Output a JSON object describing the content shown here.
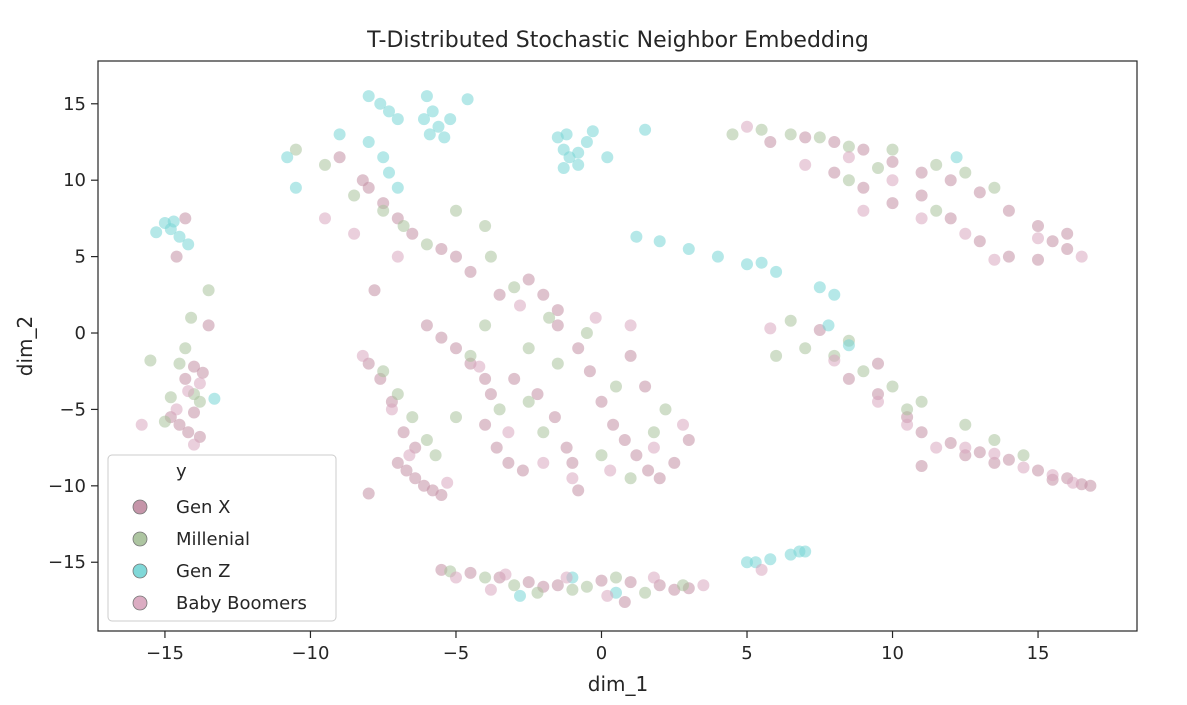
{
  "chart_data": {
    "type": "scatter",
    "title": "T-Distributed Stochastic Neighbor Embedding",
    "xlabel": "dim_1",
    "ylabel": "dim_2",
    "xlim": [
      -17.3,
      18.4
    ],
    "ylim": [
      -19.5,
      17.8
    ],
    "xticks": [
      -15,
      -10,
      -5,
      0,
      5,
      10,
      15
    ],
    "yticks": [
      -15,
      -10,
      -5,
      0,
      5,
      10,
      15
    ],
    "grid": false,
    "legend": {
      "title": "y",
      "placement": "lower-left"
    },
    "series": [
      {
        "name": "Gen X",
        "color": "#c28fa4",
        "points": [
          [
            -14.8,
            -5.5
          ],
          [
            -14.5,
            -6.0
          ],
          [
            -14.2,
            -6.5
          ],
          [
            -14.0,
            -5.2
          ],
          [
            -13.8,
            -6.8
          ],
          [
            -14.3,
            -3.0
          ],
          [
            -14.0,
            -2.2
          ],
          [
            -13.7,
            -2.6
          ],
          [
            -14.6,
            5.0
          ],
          [
            -14.3,
            7.5
          ],
          [
            -13.5,
            0.5
          ],
          [
            -7.0,
            -8.5
          ],
          [
            -6.7,
            -9.0
          ],
          [
            -6.4,
            -9.5
          ],
          [
            -6.1,
            -10.0
          ],
          [
            -5.8,
            -10.3
          ],
          [
            -5.5,
            -10.6
          ],
          [
            -8.0,
            -2.0
          ],
          [
            -7.6,
            -3.0
          ],
          [
            -7.2,
            -4.5
          ],
          [
            -6.8,
            -6.5
          ],
          [
            -6.4,
            -7.5
          ],
          [
            -8.0,
            -10.5
          ],
          [
            -4.0,
            -6.0
          ],
          [
            -3.6,
            -7.5
          ],
          [
            -3.2,
            -8.5
          ],
          [
            -2.7,
            -9.0
          ],
          [
            -3.0,
            -3.0
          ],
          [
            -2.2,
            -4.0
          ],
          [
            -1.6,
            -5.5
          ],
          [
            -1.2,
            -7.5
          ],
          [
            -1.0,
            -8.5
          ],
          [
            -0.8,
            -10.3
          ],
          [
            -1.5,
            0.5
          ],
          [
            -0.8,
            -1.0
          ],
          [
            -0.4,
            -2.5
          ],
          [
            0.0,
            -4.5
          ],
          [
            0.4,
            -6.0
          ],
          [
            0.8,
            -7.0
          ],
          [
            1.2,
            -8.0
          ],
          [
            1.6,
            -9.0
          ],
          [
            2.0,
            -9.5
          ],
          [
            2.5,
            -8.5
          ],
          [
            3.0,
            -7.0
          ],
          [
            1.5,
            -3.5
          ],
          [
            1.0,
            -1.5
          ],
          [
            -6.0,
            0.5
          ],
          [
            -5.5,
            -0.3
          ],
          [
            -5.0,
            -1.0
          ],
          [
            -4.5,
            -2.0
          ],
          [
            -4.0,
            -3.0
          ],
          [
            -3.8,
            -4.0
          ],
          [
            -3.5,
            2.5
          ],
          [
            -2.5,
            3.5
          ],
          [
            -2.0,
            2.5
          ],
          [
            -1.5,
            1.5
          ],
          [
            -8.0,
            9.5
          ],
          [
            -7.5,
            8.5
          ],
          [
            -7.0,
            7.5
          ],
          [
            -6.5,
            6.5
          ],
          [
            -5.5,
            5.5
          ],
          [
            -4.5,
            4.0
          ],
          [
            -5.0,
            5.0
          ],
          [
            -7.8,
            2.8
          ],
          [
            -9.0,
            11.5
          ],
          [
            -8.2,
            10.0
          ],
          [
            11.0,
            -6.5
          ],
          [
            12.0,
            -7.2
          ],
          [
            13.0,
            -7.8
          ],
          [
            14.0,
            -8.3
          ],
          [
            15.0,
            -9.0
          ],
          [
            16.0,
            -9.5
          ],
          [
            16.5,
            -9.9
          ],
          [
            10.5,
            -5.5
          ],
          [
            9.5,
            -4.0
          ],
          [
            8.5,
            -3.0
          ],
          [
            13.5,
            -8.5
          ],
          [
            11.0,
            -8.7
          ],
          [
            12.5,
            -8.0
          ],
          [
            15.5,
            -9.6
          ],
          [
            16.8,
            -10.0
          ],
          [
            7.5,
            0.2
          ],
          [
            9.5,
            -2.0
          ],
          [
            5.8,
            12.5
          ],
          [
            7.0,
            12.8
          ],
          [
            8.0,
            12.5
          ],
          [
            9.0,
            12.0
          ],
          [
            10.0,
            11.2
          ],
          [
            11.0,
            10.5
          ],
          [
            12.0,
            10.0
          ],
          [
            13.0,
            9.2
          ],
          [
            14.0,
            8.0
          ],
          [
            15.0,
            7.0
          ],
          [
            16.0,
            6.5
          ],
          [
            8.0,
            10.5
          ],
          [
            9.0,
            9.5
          ],
          [
            10.0,
            8.5
          ],
          [
            12.0,
            7.5
          ],
          [
            13.0,
            6.0
          ],
          [
            14.0,
            5.0
          ],
          [
            15.0,
            4.8
          ],
          [
            16.0,
            5.5
          ],
          [
            11.0,
            9.0
          ],
          [
            15.5,
            6.0
          ],
          [
            -5.5,
            -15.5
          ],
          [
            -4.5,
            -15.7
          ],
          [
            -3.5,
            -16.0
          ],
          [
            -2.5,
            -16.3
          ],
          [
            -1.5,
            -16.5
          ],
          [
            0.0,
            -16.2
          ],
          [
            1.0,
            -16.3
          ],
          [
            2.0,
            -16.5
          ],
          [
            3.0,
            -16.7
          ],
          [
            -2.0,
            -16.6
          ],
          [
            0.8,
            -17.6
          ],
          [
            2.5,
            -16.8
          ]
        ]
      },
      {
        "name": "Millenial",
        "color": "#a9c29c",
        "points": [
          [
            -15.5,
            -1.8
          ],
          [
            -14.5,
            -2.0
          ],
          [
            -14.0,
            -4.0
          ],
          [
            -14.3,
            -1.0
          ],
          [
            -13.8,
            -4.5
          ],
          [
            -15.0,
            -5.8
          ],
          [
            -14.8,
            -4.2
          ],
          [
            -13.5,
            2.8
          ],
          [
            -14.1,
            1.0
          ],
          [
            -7.5,
            -2.5
          ],
          [
            -7.0,
            -4.0
          ],
          [
            -6.5,
            -5.5
          ],
          [
            -6.0,
            -7.0
          ],
          [
            -5.7,
            -8.0
          ],
          [
            -4.5,
            -1.5
          ],
          [
            -3.5,
            -5.0
          ],
          [
            -2.0,
            -6.5
          ],
          [
            -1.5,
            -2.0
          ],
          [
            -0.5,
            0.0
          ],
          [
            0.5,
            -3.5
          ],
          [
            1.8,
            -6.5
          ],
          [
            2.2,
            -5.0
          ],
          [
            -2.5,
            -1.0
          ],
          [
            -3.0,
            3.0
          ],
          [
            -1.8,
            1.0
          ],
          [
            -4.0,
            0.5
          ],
          [
            -2.5,
            -4.5
          ],
          [
            -5.0,
            -5.5
          ],
          [
            0.0,
            -8.0
          ],
          [
            1.0,
            -9.5
          ],
          [
            -10.5,
            12.0
          ],
          [
            -9.5,
            11.0
          ],
          [
            -8.5,
            9.0
          ],
          [
            -7.5,
            8.0
          ],
          [
            -6.8,
            7.0
          ],
          [
            -6.0,
            5.8
          ],
          [
            -5.0,
            8.0
          ],
          [
            -4.0,
            7.0
          ],
          [
            -3.8,
            5.0
          ],
          [
            6.0,
            -1.5
          ],
          [
            7.0,
            -1.0
          ],
          [
            8.0,
            -1.5
          ],
          [
            9.0,
            -2.5
          ],
          [
            10.0,
            -3.5
          ],
          [
            11.0,
            -4.5
          ],
          [
            12.5,
            -6.0
          ],
          [
            13.5,
            -7.0
          ],
          [
            14.5,
            -8.0
          ],
          [
            8.5,
            -0.5
          ],
          [
            6.5,
            0.8
          ],
          [
            10.5,
            -5.0
          ],
          [
            4.5,
            13.0
          ],
          [
            5.5,
            13.3
          ],
          [
            6.5,
            13.0
          ],
          [
            7.5,
            12.8
          ],
          [
            8.5,
            12.2
          ],
          [
            10.0,
            12.0
          ],
          [
            11.5,
            11.0
          ],
          [
            12.5,
            10.5
          ],
          [
            13.5,
            9.5
          ],
          [
            8.5,
            10.0
          ],
          [
            9.5,
            10.8
          ],
          [
            11.5,
            8.0
          ],
          [
            -4.0,
            -16.0
          ],
          [
            -3.0,
            -16.5
          ],
          [
            -2.2,
            -17.0
          ],
          [
            -1.0,
            -16.8
          ],
          [
            0.5,
            -16.0
          ],
          [
            1.5,
            -17.0
          ],
          [
            2.8,
            -16.5
          ],
          [
            -5.2,
            -15.6
          ],
          [
            -0.5,
            -16.6
          ]
        ]
      },
      {
        "name": "Gen Z",
        "color": "#79d6d6",
        "points": [
          [
            -15.0,
            7.2
          ],
          [
            -14.8,
            6.8
          ],
          [
            -14.5,
            6.3
          ],
          [
            -14.2,
            5.8
          ],
          [
            -15.3,
            6.6
          ],
          [
            -14.7,
            7.3
          ],
          [
            -13.3,
            -4.3
          ],
          [
            -10.8,
            11.5
          ],
          [
            -10.5,
            9.5
          ],
          [
            -9.0,
            13.0
          ],
          [
            -8.0,
            12.5
          ],
          [
            -7.5,
            11.5
          ],
          [
            -7.3,
            10.5
          ],
          [
            -7.0,
            9.5
          ],
          [
            -8.0,
            15.5
          ],
          [
            -7.6,
            15.0
          ],
          [
            -7.3,
            14.5
          ],
          [
            -7.0,
            14.0
          ],
          [
            -6.0,
            15.5
          ],
          [
            -5.8,
            14.5
          ],
          [
            -5.6,
            13.5
          ],
          [
            -5.4,
            12.8
          ],
          [
            -6.1,
            14.0
          ],
          [
            -5.9,
            13.0
          ],
          [
            -5.2,
            14.0
          ],
          [
            -4.6,
            15.3
          ],
          [
            -1.5,
            12.8
          ],
          [
            -1.3,
            12.0
          ],
          [
            -1.1,
            11.5
          ],
          [
            -0.8,
            11.0
          ],
          [
            -0.5,
            12.5
          ],
          [
            -1.2,
            13.0
          ],
          [
            -0.3,
            13.2
          ],
          [
            -0.8,
            11.8
          ],
          [
            0.2,
            11.5
          ],
          [
            -1.3,
            10.8
          ],
          [
            1.5,
            13.3
          ],
          [
            1.2,
            6.3
          ],
          [
            2.0,
            6.0
          ],
          [
            3.0,
            5.5
          ],
          [
            4.0,
            5.0
          ],
          [
            5.0,
            4.5
          ],
          [
            6.0,
            4.0
          ],
          [
            7.5,
            3.0
          ],
          [
            8.0,
            2.5
          ],
          [
            7.8,
            0.5
          ],
          [
            8.5,
            -0.8
          ],
          [
            5.5,
            4.6
          ],
          [
            12.2,
            11.5
          ],
          [
            5.0,
            -15.0
          ],
          [
            5.8,
            -14.8
          ],
          [
            6.5,
            -14.5
          ],
          [
            7.0,
            -14.3
          ],
          [
            5.3,
            -15.0
          ],
          [
            6.8,
            -14.3
          ],
          [
            -1.0,
            -16.0
          ],
          [
            0.5,
            -17.0
          ],
          [
            -2.8,
            -17.2
          ]
        ]
      },
      {
        "name": "Baby Boomers",
        "color": "#d9a8bf",
        "points": [
          [
            -14.2,
            -3.8
          ],
          [
            -13.8,
            -3.3
          ],
          [
            -14.0,
            -7.3
          ],
          [
            -14.6,
            -5.0
          ],
          [
            -15.8,
            -6.0
          ],
          [
            -8.2,
            -1.5
          ],
          [
            -7.2,
            -5.0
          ],
          [
            -6.6,
            -8.0
          ],
          [
            -5.3,
            -9.8
          ],
          [
            -3.2,
            -6.5
          ],
          [
            -2.0,
            -8.5
          ],
          [
            -1.0,
            -9.5
          ],
          [
            0.3,
            -9.0
          ],
          [
            1.8,
            -7.5
          ],
          [
            2.8,
            -6.0
          ],
          [
            1.0,
            0.5
          ],
          [
            -0.2,
            1.0
          ],
          [
            -9.5,
            7.5
          ],
          [
            -8.5,
            6.5
          ],
          [
            -7.0,
            5.0
          ],
          [
            -4.2,
            -2.2
          ],
          [
            -2.8,
            1.8
          ],
          [
            9.5,
            -4.5
          ],
          [
            10.5,
            -6.0
          ],
          [
            11.5,
            -7.5
          ],
          [
            12.5,
            -7.5
          ],
          [
            13.5,
            -7.9
          ],
          [
            14.5,
            -8.8
          ],
          [
            15.5,
            -9.3
          ],
          [
            16.2,
            -9.8
          ],
          [
            5.8,
            0.3
          ],
          [
            8.0,
            -1.8
          ],
          [
            7.0,
            11.0
          ],
          [
            8.5,
            11.5
          ],
          [
            10.0,
            10.0
          ],
          [
            11.0,
            7.5
          ],
          [
            12.5,
            6.5
          ],
          [
            13.5,
            4.8
          ],
          [
            15.0,
            6.2
          ],
          [
            16.5,
            5.0
          ],
          [
            9.0,
            8.0
          ],
          [
            5.0,
            13.5
          ],
          [
            -5.0,
            -16.0
          ],
          [
            -3.8,
            -16.8
          ],
          [
            -1.2,
            -16.0
          ],
          [
            0.2,
            -17.2
          ],
          [
            1.8,
            -16.0
          ],
          [
            3.5,
            -16.5
          ],
          [
            5.5,
            -15.5
          ],
          [
            -3.3,
            -15.8
          ]
        ]
      }
    ]
  }
}
